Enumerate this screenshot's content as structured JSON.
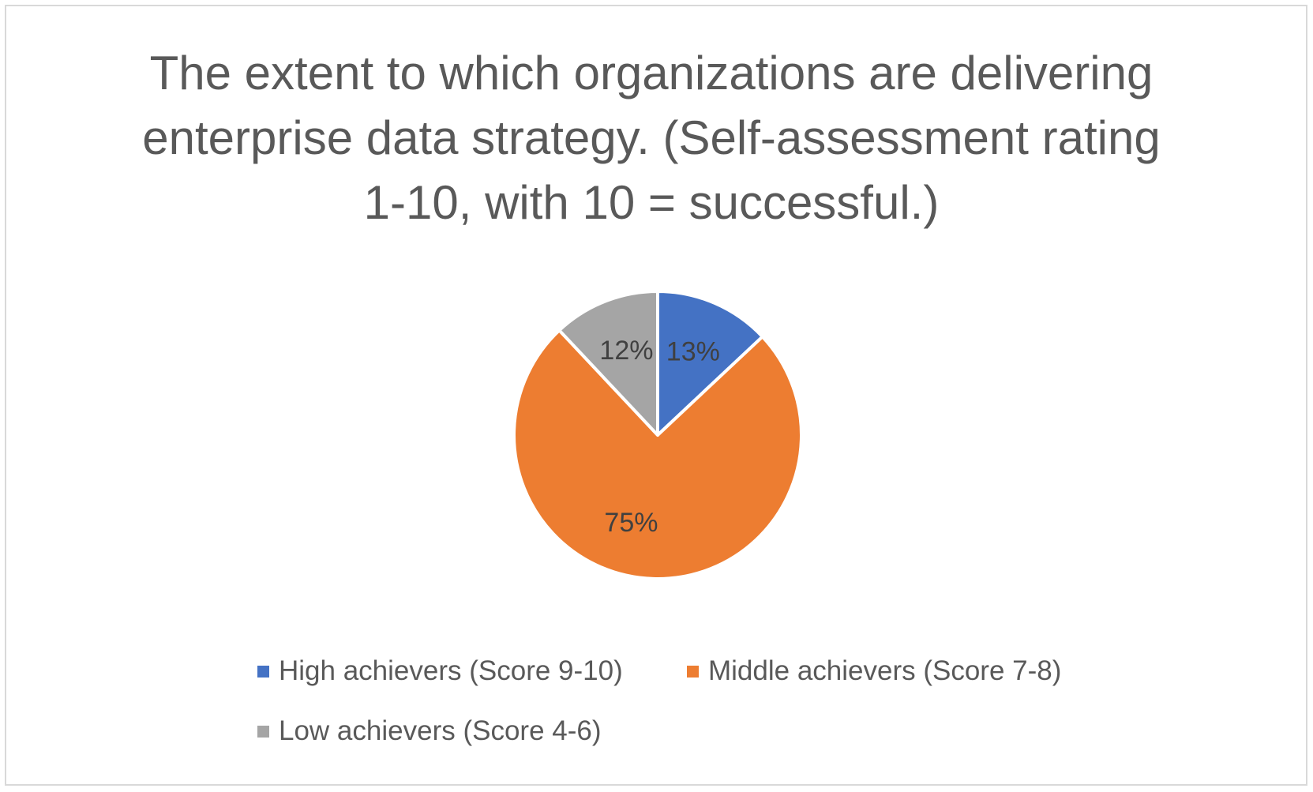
{
  "chart_data": {
    "type": "pie",
    "title": "The extent to which organizations are delivering enterprise data strategy. (Self-assessment rating 1-10, with 10 = successful.)",
    "categories": [
      "High achievers (Score 9-10)",
      "Middle achievers (Score 7-8)",
      "Low achievers (Score 4-6)"
    ],
    "values": [
      13,
      75,
      12
    ],
    "data_labels": [
      "13%",
      "75%",
      "12%"
    ],
    "colors": [
      "#4472c4",
      "#ed7d31",
      "#a5a5a5"
    ],
    "legend_position": "bottom"
  }
}
